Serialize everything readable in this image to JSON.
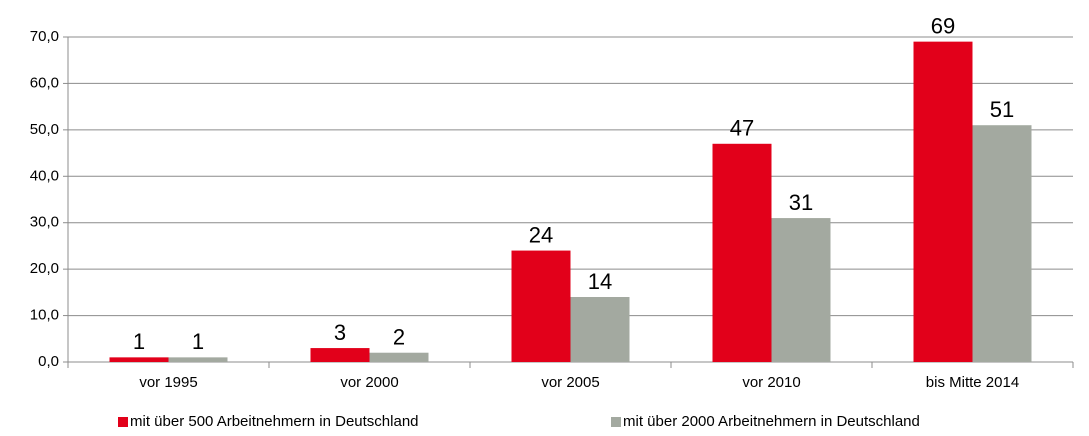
{
  "chart_data": {
    "type": "bar",
    "categories": [
      "vor 1995",
      "vor 2000",
      "vor 2005",
      "vor 2010",
      "bis Mitte 2014"
    ],
    "series": [
      {
        "name": "mit über 500 Arbeitnehmern in Deutschland",
        "color": "#e2001a",
        "values": [
          1,
          3,
          24,
          47,
          69
        ]
      },
      {
        "name": "mit über 2000 Arbeitnehmern in Deutschland",
        "color": "#a3a9a0",
        "values": [
          1,
          2,
          14,
          31,
          51
        ]
      }
    ],
    "ylim": [
      0,
      70
    ],
    "yticks": [
      {
        "value": 0,
        "label": "0,0"
      },
      {
        "value": 10,
        "label": "10,0"
      },
      {
        "value": 20,
        "label": "20,0"
      },
      {
        "value": 30,
        "label": "30,0"
      },
      {
        "value": 40,
        "label": "40,0"
      },
      {
        "value": 50,
        "label": "50,0"
      },
      {
        "value": 60,
        "label": "60,0"
      },
      {
        "value": 70,
        "label": "70,0"
      }
    ],
    "grid": true,
    "legend": "bottom"
  }
}
